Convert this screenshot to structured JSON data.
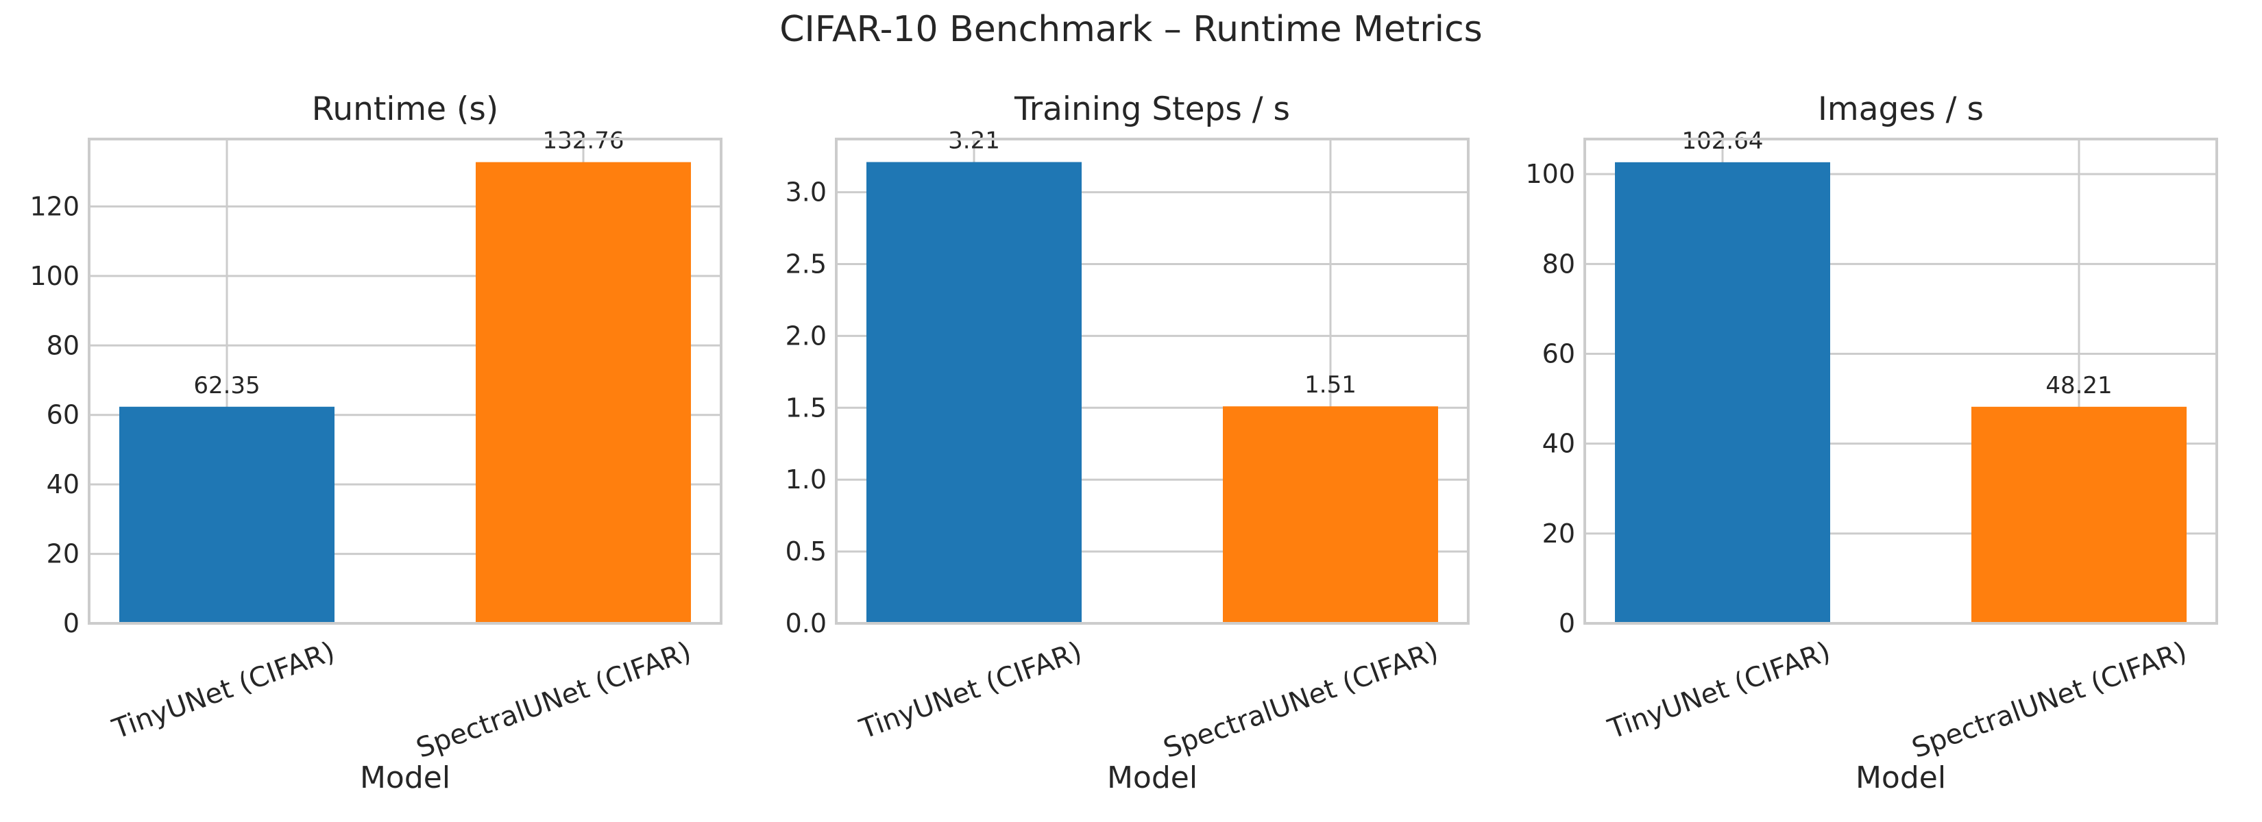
{
  "figure": {
    "title": "CIFAR-10 Benchmark – Runtime Metrics",
    "background": "#ffffff",
    "grid_color": "#cccccc"
  },
  "chart_data": [
    {
      "type": "bar",
      "title": "Runtime (s)",
      "xlabel": "Model",
      "ylabel": "",
      "categories": [
        "TinyUNet (CIFAR)",
        "SpectralUNet (CIFAR)"
      ],
      "values": [
        62.35,
        132.76
      ],
      "value_labels": [
        "62.35",
        "132.76"
      ],
      "colors": [
        "#1f77b4",
        "#ff7f0e"
      ],
      "ylim": [
        0,
        139.4
      ],
      "yticks": [
        0,
        20,
        40,
        60,
        80,
        100,
        120
      ],
      "ytick_labels": [
        "0",
        "20",
        "40",
        "60",
        "80",
        "100",
        "120"
      ],
      "grid": true
    },
    {
      "type": "bar",
      "title": "Training Steps / s",
      "xlabel": "Model",
      "ylabel": "",
      "categories": [
        "TinyUNet (CIFAR)",
        "SpectralUNet (CIFAR)"
      ],
      "values": [
        3.21,
        1.51
      ],
      "value_labels": [
        "3.21",
        "1.51"
      ],
      "colors": [
        "#1f77b4",
        "#ff7f0e"
      ],
      "ylim": [
        0,
        3.37
      ],
      "yticks": [
        0,
        0.5,
        1.0,
        1.5,
        2.0,
        2.5,
        3.0
      ],
      "ytick_labels": [
        "0.0",
        "0.5",
        "1.0",
        "1.5",
        "2.0",
        "2.5",
        "3.0"
      ],
      "grid": true
    },
    {
      "type": "bar",
      "title": "Images / s",
      "xlabel": "Model",
      "ylabel": "",
      "categories": [
        "TinyUNet (CIFAR)",
        "SpectralUNet (CIFAR)"
      ],
      "values": [
        102.64,
        48.21
      ],
      "value_labels": [
        "102.64",
        "48.21"
      ],
      "colors": [
        "#1f77b4",
        "#ff7f0e"
      ],
      "ylim": [
        0,
        107.8
      ],
      "yticks": [
        0,
        20,
        40,
        60,
        80,
        100
      ],
      "ytick_labels": [
        "0",
        "20",
        "40",
        "60",
        "80",
        "100"
      ],
      "grid": true
    }
  ]
}
